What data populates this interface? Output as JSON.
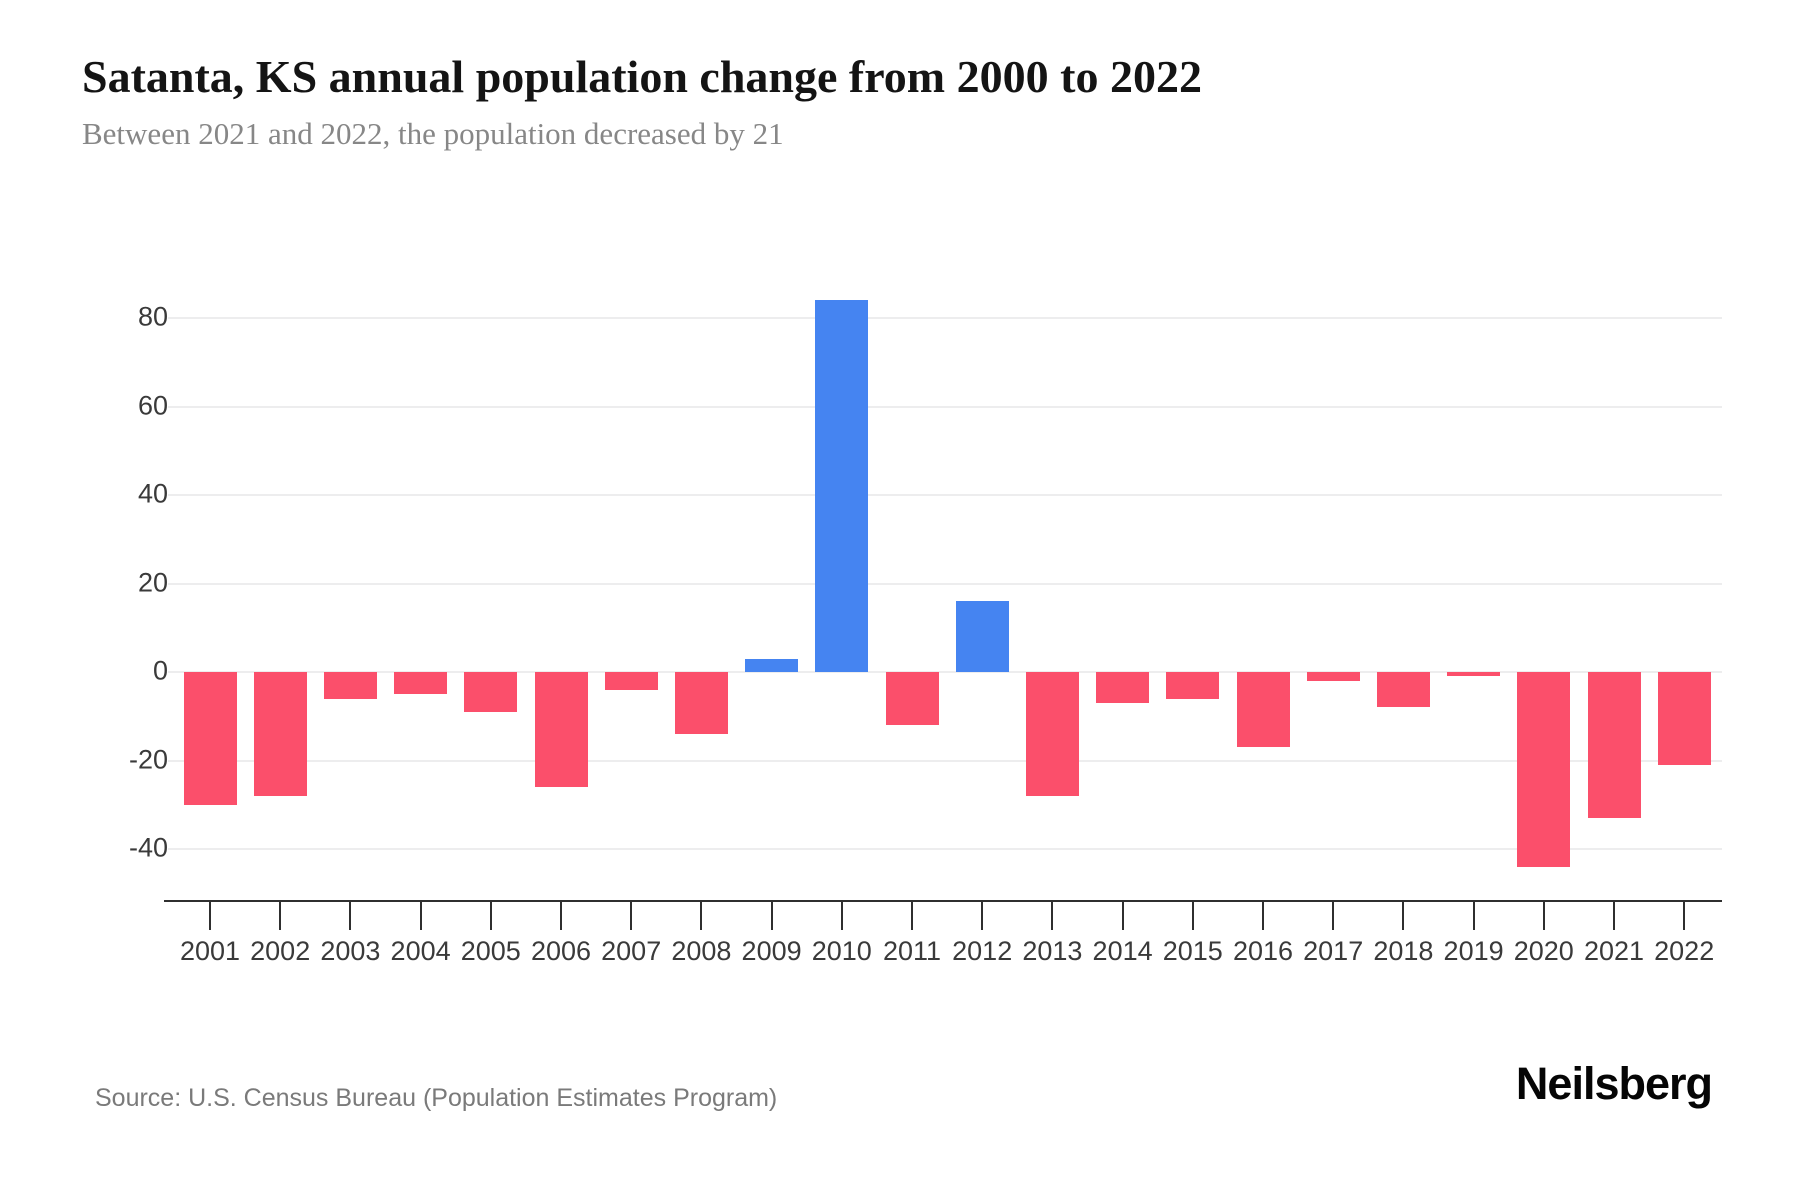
{
  "header": {
    "title": "Satanta, KS annual population change from 2000 to 2022",
    "subtitle": "Between 2021 and 2022, the population decreased by 21"
  },
  "footer": {
    "source": "Source: U.S. Census Bureau (Population Estimates Program)",
    "brand": "Neilsberg"
  },
  "chart_data": {
    "type": "bar",
    "title": "Satanta, KS annual population change from 2000 to 2022",
    "subtitle": "Between 2021 and 2022, the population decreased by 21",
    "categories": [
      "2001",
      "2002",
      "2003",
      "2004",
      "2005",
      "2006",
      "2007",
      "2008",
      "2009",
      "2010",
      "2011",
      "2012",
      "2013",
      "2014",
      "2015",
      "2016",
      "2017",
      "2018",
      "2019",
      "2020",
      "2021",
      "2022"
    ],
    "values": [
      -30,
      -28,
      -6,
      -5,
      -9,
      -26,
      -4,
      -14,
      3,
      84,
      -12,
      16,
      -28,
      -7,
      -6,
      -17,
      -2,
      -8,
      -1,
      -44,
      -33,
      -21
    ],
    "xlabel": "",
    "ylabel": "",
    "y_ticks": [
      80,
      60,
      40,
      20,
      0,
      -20,
      -40
    ],
    "ylim": [
      -50,
      95
    ],
    "grid": true,
    "legend_position": "none",
    "colors": {
      "positive_bar": "#4584F1",
      "negative_bar": "#FB4F6B",
      "gridline": "#ededee",
      "axis": "#2f2f2f",
      "tick_label": "#3a3a3a"
    }
  }
}
